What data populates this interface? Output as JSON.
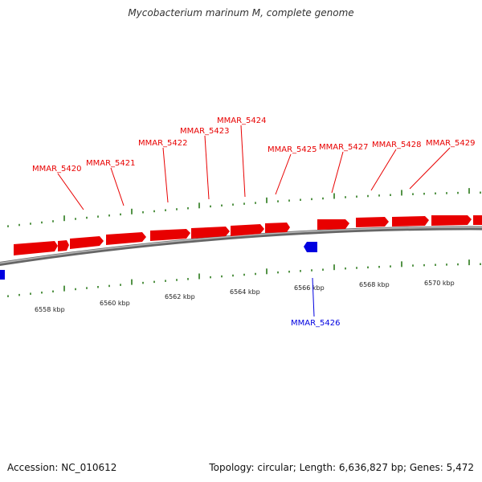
{
  "title": "Mycobacterium marinum M, complete genome",
  "accession": "Accession: NC_010612",
  "summary": "Topology: circular; Length: 6,636,827 bp; Genes: 5,472",
  "colors": {
    "forward": "#e80000",
    "reverse": "#0000e0",
    "ticks": "#2a7a1a",
    "backbone": "#888888"
  },
  "ticks": [
    {
      "label": "6558 kbp"
    },
    {
      "label": "6560 kbp"
    },
    {
      "label": "6562 kbp"
    },
    {
      "label": "6564 kbp"
    },
    {
      "label": "6566 kbp"
    },
    {
      "label": "6568 kbp"
    },
    {
      "label": "6570 kbp"
    }
  ],
  "genes": [
    {
      "name": "MMAR_5420",
      "strand": "forward"
    },
    {
      "name": "MMAR_5421",
      "strand": "forward"
    },
    {
      "name": "MMAR_5422",
      "strand": "forward"
    },
    {
      "name": "MMAR_5423",
      "strand": "forward"
    },
    {
      "name": "MMAR_5424",
      "strand": "forward"
    },
    {
      "name": "MMAR_5425",
      "strand": "forward"
    },
    {
      "name": "MMAR_5426",
      "strand": "reverse"
    },
    {
      "name": "MMAR_5427",
      "strand": "forward"
    },
    {
      "name": "MMAR_5428",
      "strand": "forward"
    },
    {
      "name": "MMAR_5429",
      "strand": "forward"
    }
  ]
}
